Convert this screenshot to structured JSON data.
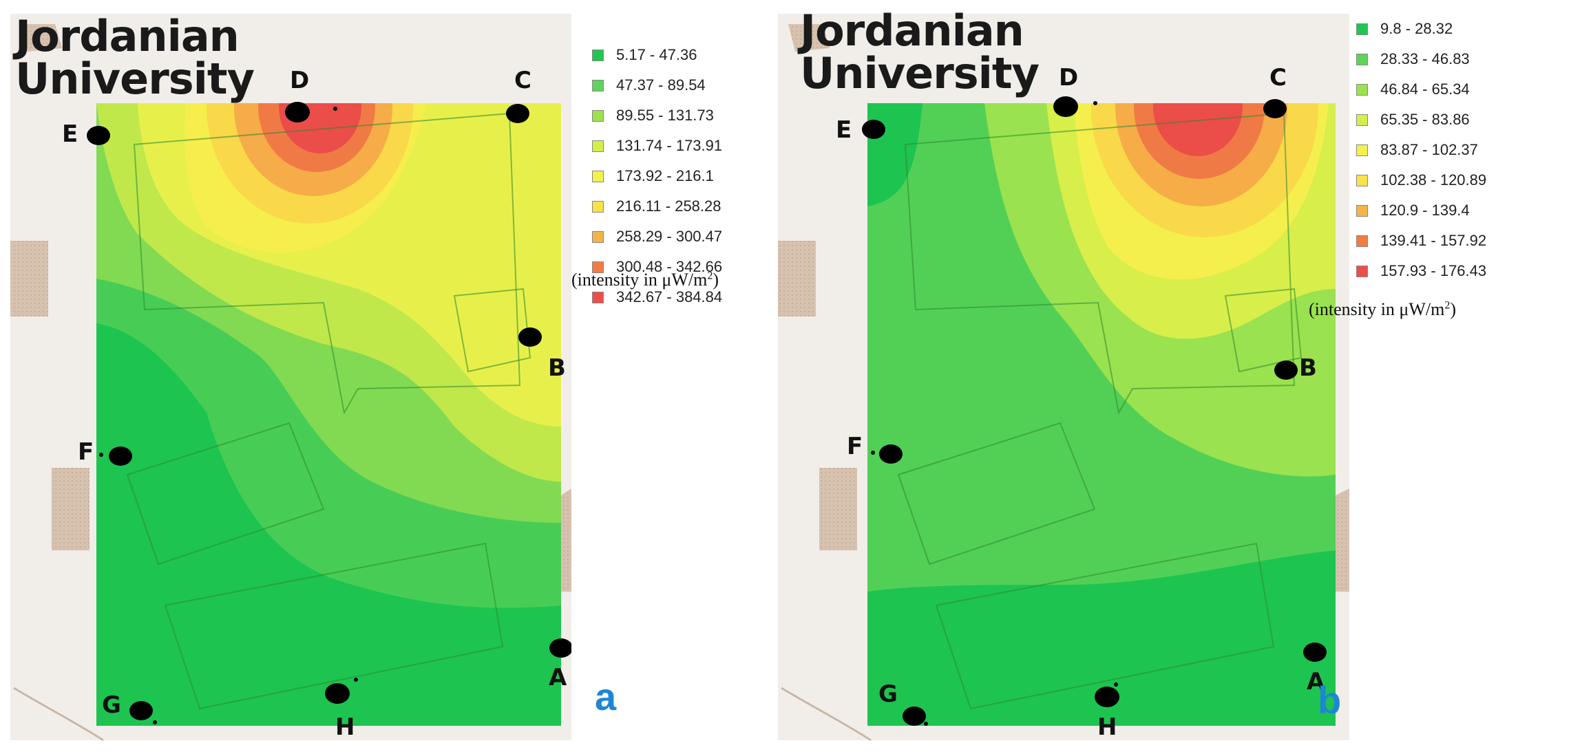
{
  "panels": [
    {
      "id": "a",
      "title_line1": "Jordanian",
      "title_line2": "University",
      "letter": "a",
      "points": [
        "A",
        "B",
        "C",
        "D",
        "E",
        "F",
        "G",
        "H"
      ],
      "legend": {
        "ranges": [
          "5.17 - 47.36",
          "47.37 - 89.54",
          "89.55 - 131.73",
          "131.74 - 173.91",
          "173.92 - 216.1",
          "216.11 - 258.28",
          "258.29 - 300.47",
          "300.48 - 342.66",
          "342.67 - 384.84"
        ],
        "colors": [
          "#21c552",
          "#5fd35a",
          "#9be24e",
          "#d6ee4a",
          "#f3f24c",
          "#f9e24a",
          "#f6b34a",
          "#f17c45",
          "#ec4e49"
        ],
        "note_prefix": "(intensity in μW/m",
        "note_sup": "2",
        "note_suffix": ")"
      }
    },
    {
      "id": "b",
      "title_line1": "Jordanian",
      "title_line2": "University",
      "letter": "b",
      "points": [
        "A",
        "B",
        "C",
        "D",
        "E",
        "F",
        "G",
        "H"
      ],
      "legend": {
        "ranges": [
          "9.8 - 28.32",
          "28.33 - 46.83",
          "46.84 - 65.34",
          "65.35 - 83.86",
          "83.87 - 102.37",
          "102.38 - 120.89",
          "120.9 - 139.4",
          "139.41 - 157.92",
          "157.93 - 176.43"
        ],
        "colors": [
          "#21c552",
          "#5fd35a",
          "#9be24e",
          "#d6ee4a",
          "#f3f24c",
          "#f9e24a",
          "#f6b34a",
          "#f17c45",
          "#ec4e49"
        ],
        "note_prefix": "(intensity in μW/m",
        "note_sup": "2",
        "note_suffix": ")"
      }
    }
  ]
}
